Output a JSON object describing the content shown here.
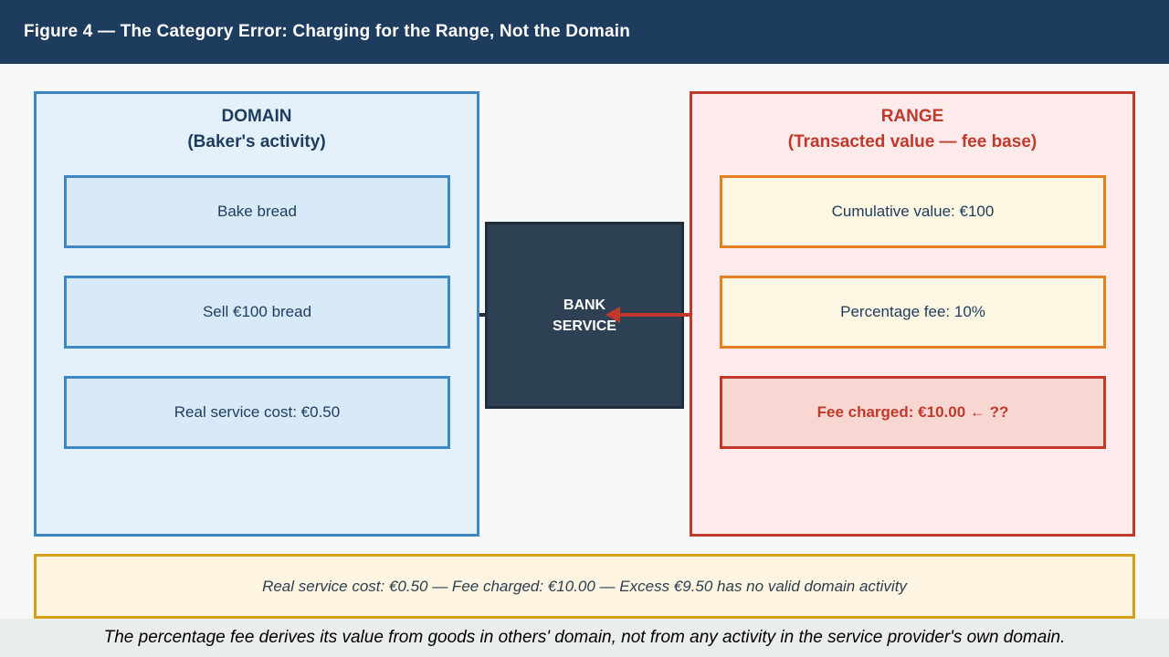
{
  "header": {
    "title": "Figure 4 — The Category Error: Charging for the Range, Not the Domain"
  },
  "domain_box": {
    "title": "DOMAIN",
    "subtitle": "(Baker's activity)",
    "items": [
      "Bake bread",
      "Sell €100 bread",
      "Real service cost: €0.50"
    ]
  },
  "bank_box": {
    "line1": "BANK",
    "line2": "SERVICE"
  },
  "range_box": {
    "title": "RANGE",
    "subtitle": "(Transacted value — fee base)",
    "items": [
      "Cumulative value: €100",
      "Percentage fee: 10%",
      "Fee charged: €10.00 ← ??"
    ]
  },
  "note_box": {
    "text": "Real service cost: €0.50 — Fee charged: €10.00 — Excess €9.50 has no valid domain activity"
  },
  "footer": {
    "text": "The percentage fee derives its value from goods in others' domain, not from any activity in the service provider's own domain."
  },
  "icons": {
    "fee_arrow": "left-arrow-icon"
  },
  "colors": {
    "header_bg": "#1d3c5e",
    "page_bg": "#f7f8fa",
    "domain_border": "#3d88c2",
    "domain_fill": "#e4f1fb",
    "domain_item_fill": "#d8e9f8",
    "navy_text": "#1d3c5e",
    "bank_fill": "#2e4053",
    "bank_border": "#1f2d3d",
    "range_border": "#c0392b",
    "range_fill": "#fdeaea",
    "orange_border": "#e67e22",
    "cream_fill": "#fdf6e3",
    "fee_fill": "#f8d7d3",
    "fee_text": "#c0392b",
    "gold_border": "#d4a017",
    "note_fill": "#fdf5e1",
    "footer_bg": "#e9edee",
    "arrow_red": "#c0392b"
  }
}
